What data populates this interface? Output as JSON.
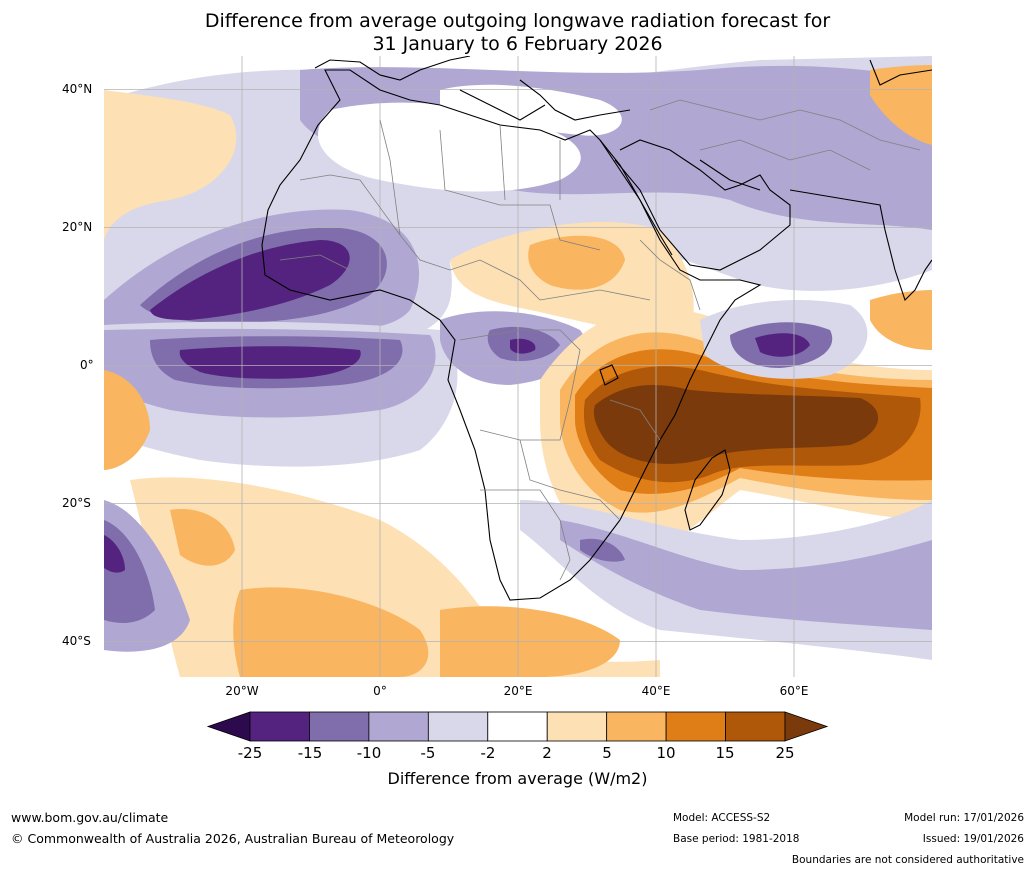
{
  "title": {
    "line1": "Difference from average outgoing longwave radiation forecast for",
    "line2": "31 January to 6 February 2026"
  },
  "axes": {
    "lat_labels": [
      "40°N",
      "20°N",
      "0°",
      "20°S",
      "40°S"
    ],
    "lon_labels": [
      "20°W",
      "0°",
      "20°E",
      "40°E",
      "60°E"
    ],
    "lat_range": [
      -45,
      45
    ],
    "lon_range": [
      -40,
      80
    ]
  },
  "colorbar": {
    "ticks": [
      "-25",
      "-15",
      "-10",
      "-5",
      "-2",
      "2",
      "5",
      "10",
      "15",
      "25"
    ],
    "colors": {
      "under": "#2d0a4e",
      "c_m25": "#54237f",
      "c_m15": "#7f6eab",
      "c_m10": "#b0a8d2",
      "c_m5": "#d9d8ea",
      "c_0": "#ffffff",
      "c_p2": "#fde0b4",
      "c_p5": "#f9b560",
      "c_p10": "#df7d17",
      "c_p15": "#b05809",
      "over": "#7b3a0b"
    },
    "label": "Difference from average (W/m2)"
  },
  "footer": {
    "website": "www.bom.gov.au/climate",
    "copyright": "© Commonwealth of Australia 2026, Australian Bureau of Meteorology",
    "model": "Model: ACCESS-S2",
    "base_period": "Base period: 1981-2018",
    "model_run": "Model run: 17/01/2026",
    "issued": "Issued: 19/01/2026",
    "disclaimer": "Boundaries are not considered authoritative"
  }
}
